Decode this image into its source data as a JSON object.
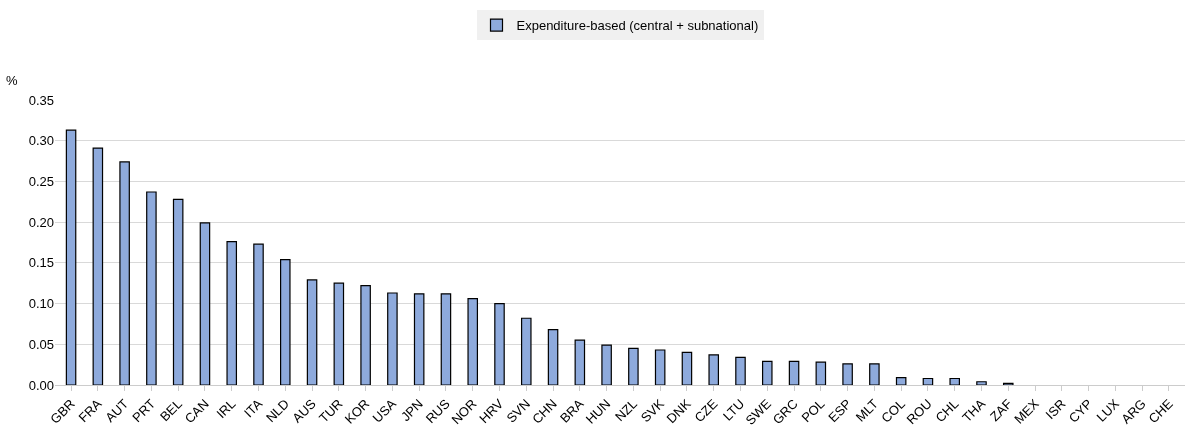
{
  "chart_data": {
    "type": "bar",
    "ylabel": "%",
    "categories": [
      "GBR",
      "FRA",
      "AUT",
      "PRT",
      "BEL",
      "CAN",
      "IRL",
      "ITA",
      "NLD",
      "AUS",
      "TUR",
      "KOR",
      "USA",
      "JPN",
      "RUS",
      "NOR",
      "HRV",
      "SVN",
      "CHN",
      "BRA",
      "HUN",
      "NZL",
      "SVK",
      "DNK",
      "CZE",
      "LTU",
      "SWE",
      "GRC",
      "POL",
      "ESP",
      "MLT",
      "COL",
      "ROU",
      "CHL",
      "THA",
      "ZAF",
      "MEX",
      "ISR",
      "CYP",
      "LUX",
      "ARG",
      "CHE"
    ],
    "series": [
      {
        "name": "Expenditure-based (central + subnational)",
        "color": "#8eaadc",
        "values": [
          0.313,
          0.291,
          0.274,
          0.237,
          0.228,
          0.199,
          0.176,
          0.173,
          0.154,
          0.129,
          0.125,
          0.122,
          0.113,
          0.112,
          0.112,
          0.106,
          0.1,
          0.082,
          0.068,
          0.055,
          0.049,
          0.045,
          0.043,
          0.04,
          0.037,
          0.034,
          0.029,
          0.029,
          0.028,
          0.026,
          0.026,
          0.009,
          0.008,
          0.008,
          0.004,
          0.002,
          null,
          null,
          null,
          null,
          null,
          null
        ]
      }
    ],
    "ylim": [
      0,
      0.35
    ],
    "yticks": [
      {
        "value": 0,
        "label": "0.00"
      },
      {
        "value": 0.05,
        "label": "0.05"
      },
      {
        "value": 0.1,
        "label": "0.10"
      },
      {
        "value": 0.15,
        "label": "0.15"
      },
      {
        "value": 0.2,
        "label": "0.20"
      },
      {
        "value": 0.25,
        "label": "0.25"
      },
      {
        "value": 0.3,
        "label": "0.30"
      },
      {
        "value": 0.35,
        "label": "0.35"
      }
    ],
    "grid": "y",
    "legend": "top"
  }
}
